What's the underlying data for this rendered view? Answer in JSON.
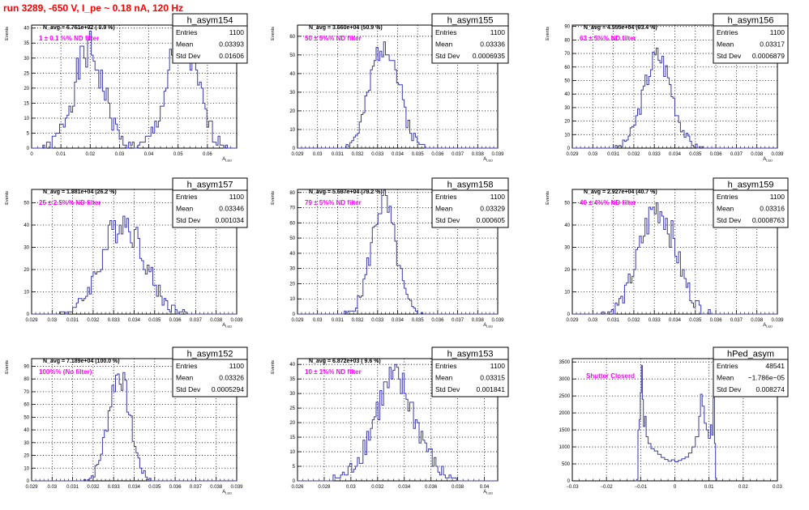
{
  "page": {
    "title": "run 3289,  -650 V, I_pe ~ 0.18 nA, 120 Hz"
  },
  "colors": {
    "histogram": "#3a3aa6",
    "filter_label": "#ff00ff",
    "run_title": "#ff0000",
    "grid": "#000000"
  },
  "chart_data": [
    {
      "type": "histogram",
      "name": "h_asym154",
      "ylabel": "Events",
      "xlabel": "A_LED",
      "xlim": [
        0,
        0.07
      ],
      "ylim": [
        0,
        41
      ],
      "xticks": [
        0,
        0.01,
        0.02,
        0.03,
        0.04,
        0.05,
        0.06,
        0.07
      ],
      "xtick_labels": [
        "0",
        "0.01",
        "0.02",
        "0.03",
        "0.04",
        "0.05",
        "0.06",
        ""
      ],
      "yticks": [
        0,
        5,
        10,
        15,
        20,
        25,
        30,
        35,
        40
      ],
      "stats": [
        [
          "Entries",
          "1100"
        ],
        [
          "Mean",
          "0.03393"
        ],
        [
          "Std Dev",
          "0.01606"
        ]
      ],
      "navg": "N_avg = 6.761e+02 ( 0.9 %)",
      "filter_label": "1 ± 0.1 %% ND filter",
      "peaks": [
        [
          0.0195,
          0.0052,
          32
        ],
        [
          0.0515,
          0.0052,
          36
        ]
      ]
    },
    {
      "type": "histogram",
      "name": "h_asym155",
      "ylabel": "Events",
      "xlabel": "A_LED",
      "xlim": [
        0.029,
        0.039
      ],
      "ylim": [
        0,
        66
      ],
      "xticks": [
        0.029,
        0.03,
        0.031,
        0.032,
        0.033,
        0.034,
        0.035,
        0.036,
        0.037,
        0.038,
        0.039
      ],
      "xtick_labels": [
        "0.029",
        "0.03",
        "0.031",
        "0.032",
        "0.033",
        "0.034",
        "0.035",
        "0.036",
        "0.037",
        "0.038",
        "0.039"
      ],
      "yticks": [
        0,
        10,
        20,
        30,
        40,
        50,
        60
      ],
      "stats": [
        [
          "Entries",
          "1100"
        ],
        [
          "Mean",
          "0.03336"
        ],
        [
          "Std Dev",
          "0.0006935"
        ]
      ],
      "navg": "N_avg = 3.660e+04 (50.9 %)",
      "filter_label": "50 ± 5%% ND filter",
      "peaks": [
        [
          0.03336,
          0.00069,
          58
        ]
      ]
    },
    {
      "type": "histogram",
      "name": "h_asym156",
      "ylabel": "Events",
      "xlabel": "A_LED",
      "xlim": [
        0.029,
        0.039
      ],
      "ylim": [
        0,
        91
      ],
      "xticks": [
        0.029,
        0.03,
        0.031,
        0.032,
        0.033,
        0.034,
        0.035,
        0.036,
        0.037,
        0.038,
        0.039
      ],
      "xtick_labels": [
        "0.029",
        "0.03",
        "0.031",
        "0.032",
        "0.033",
        "0.034",
        "0.035",
        "0.036",
        "0.037",
        "0.038",
        "0.039"
      ],
      "yticks": [
        0,
        10,
        20,
        30,
        40,
        50,
        60,
        70,
        80,
        90
      ],
      "stats": [
        [
          "Entries",
          "1100"
        ],
        [
          "Mean",
          "0.03317"
        ],
        [
          "Std Dev",
          "0.0006879"
        ]
      ],
      "navg": "N_avg = 4.555e+04 (63.4 %)",
      "filter_label": "63 ± 5%% ND filter",
      "peaks": [
        [
          0.03317,
          0.00069,
          68
        ]
      ]
    },
    {
      "type": "histogram",
      "name": "h_asym157",
      "ylabel": "Events",
      "xlabel": "A_LED",
      "xlim": [
        0.029,
        0.039
      ],
      "ylim": [
        0,
        56
      ],
      "xticks": [
        0.029,
        0.03,
        0.031,
        0.032,
        0.033,
        0.034,
        0.035,
        0.036,
        0.037,
        0.038,
        0.039
      ],
      "xtick_labels": [
        "0.029",
        "0.03",
        "0.031",
        "0.032",
        "0.033",
        "0.034",
        "0.035",
        "0.036",
        "0.037",
        "0.038",
        "0.039"
      ],
      "yticks": [
        0,
        10,
        20,
        30,
        40,
        50
      ],
      "stats": [
        [
          "Entries",
          "1100"
        ],
        [
          "Mean",
          "0.03346"
        ],
        [
          "Std Dev",
          "0.001034"
        ]
      ],
      "navg": "N_avg = 1.881e+04 (26.2 %)",
      "filter_label": "25 ± 2.5%% ND filter",
      "peaks": [
        [
          0.03346,
          0.00103,
          42
        ]
      ]
    },
    {
      "type": "histogram",
      "name": "h_asym158",
      "ylabel": "Events",
      "xlabel": "A_LED",
      "xlim": [
        0.029,
        0.039
      ],
      "ylim": [
        0,
        82
      ],
      "xticks": [
        0.029,
        0.03,
        0.031,
        0.032,
        0.033,
        0.034,
        0.035,
        0.036,
        0.037,
        0.038,
        0.039
      ],
      "xtick_labels": [
        "0.029",
        "0.03",
        "0.031",
        "0.032",
        "0.033",
        "0.034",
        "0.035",
        "0.036",
        "0.037",
        "0.038",
        "0.039"
      ],
      "yticks": [
        0,
        10,
        20,
        30,
        40,
        50,
        60,
        70,
        80
      ],
      "stats": [
        [
          "Entries",
          "1100"
        ],
        [
          "Mean",
          "0.03329"
        ],
        [
          "Std Dev",
          "0.000605"
        ]
      ],
      "navg": "N_avg = 5.697e+04 (79.2 %)",
      "filter_label": "79 ± 5%% ND filter",
      "peaks": [
        [
          0.03329,
          0.000605,
          74
        ]
      ]
    },
    {
      "type": "histogram",
      "name": "h_asym159",
      "ylabel": "Events",
      "xlabel": "A_LED",
      "xlim": [
        0.029,
        0.039
      ],
      "ylim": [
        0,
        56
      ],
      "xticks": [
        0.029,
        0.03,
        0.031,
        0.032,
        0.033,
        0.034,
        0.035,
        0.036,
        0.037,
        0.038,
        0.039
      ],
      "xtick_labels": [
        "0.029",
        "0.03",
        "0.031",
        "0.032",
        "0.033",
        "0.034",
        "0.035",
        "0.036",
        "0.037",
        "0.038",
        "0.039"
      ],
      "yticks": [
        0,
        10,
        20,
        30,
        40,
        50
      ],
      "stats": [
        [
          "Entries",
          "1100"
        ],
        [
          "Mean",
          "0.03316"
        ],
        [
          "Std Dev",
          "0.0008763"
        ]
      ],
      "navg": "N_avg = 2.927e+04 (40.7 %)",
      "filter_label": "40 ± 4%% ND filter",
      "peaks": [
        [
          0.03316,
          0.00088,
          48
        ]
      ]
    },
    {
      "type": "histogram",
      "name": "h_asym152",
      "ylabel": "Events",
      "xlabel": "A_LED",
      "xlim": [
        0.029,
        0.039
      ],
      "ylim": [
        0,
        96
      ],
      "xticks": [
        0.029,
        0.03,
        0.031,
        0.032,
        0.033,
        0.034,
        0.035,
        0.036,
        0.037,
        0.038,
        0.039
      ],
      "xtick_labels": [
        "0.029",
        "0.03",
        "0.031",
        "0.032",
        "0.033",
        "0.034",
        "0.035",
        "0.036",
        "0.037",
        "0.038",
        "0.039"
      ],
      "yticks": [
        0,
        10,
        20,
        30,
        40,
        50,
        60,
        70,
        80,
        90
      ],
      "stats": [
        [
          "Entries",
          "1100"
        ],
        [
          "Mean",
          "0.03326"
        ],
        [
          "Std Dev",
          "0.0005294"
        ]
      ],
      "navg": "N_avg = 7.189e+04 (100.0 %)",
      "filter_label": "100%% (No filter)",
      "peaks": [
        [
          0.03326,
          0.00053,
          84
        ]
      ]
    },
    {
      "type": "histogram",
      "name": "h_asym153",
      "ylabel": "Events",
      "xlabel": "A_LED",
      "xlim": [
        0.026,
        0.041
      ],
      "ylim": [
        0,
        42
      ],
      "xticks": [
        0.026,
        0.028,
        0.03,
        0.032,
        0.034,
        0.036,
        0.038,
        0.04
      ],
      "xtick_labels": [
        "0.026",
        "0.028",
        "0.03",
        "0.032",
        "0.034",
        "0.036",
        "0.038",
        "0.04"
      ],
      "yticks": [
        0,
        5,
        10,
        15,
        20,
        25,
        30,
        35,
        40
      ],
      "stats": [
        [
          "Entries",
          "1100"
        ],
        [
          "Mean",
          "0.03315"
        ],
        [
          "Std Dev",
          "0.001841"
        ]
      ],
      "navg": "N_avg = 6.872e+03 ( 9.6 %)",
      "filter_label": "10 ± 1%% ND filter",
      "peaks": [
        [
          0.0333,
          0.0016,
          34
        ]
      ]
    },
    {
      "type": "histogram",
      "name": "hPed_asym",
      "ylabel": "",
      "xlabel": "",
      "xlim": [
        -0.03,
        0.03
      ],
      "ylim": [
        0,
        3600
      ],
      "xticks": [
        -0.03,
        -0.02,
        -0.01,
        0,
        0.01,
        0.02,
        0.03
      ],
      "xtick_labels": [
        "−0.03",
        "−0.02",
        "−0.01",
        "0",
        "0.01",
        "0.02",
        "0.03"
      ],
      "yticks": [
        0,
        500,
        1000,
        1500,
        2000,
        2500,
        3000,
        3500
      ],
      "stats": [
        [
          "Entries",
          "48541"
        ],
        [
          "Mean",
          "−1.786e−05"
        ],
        [
          "Std Dev",
          "0.008274"
        ]
      ],
      "navg": "",
      "filter_label": "Shutter Closerd",
      "peaks": []
    }
  ]
}
